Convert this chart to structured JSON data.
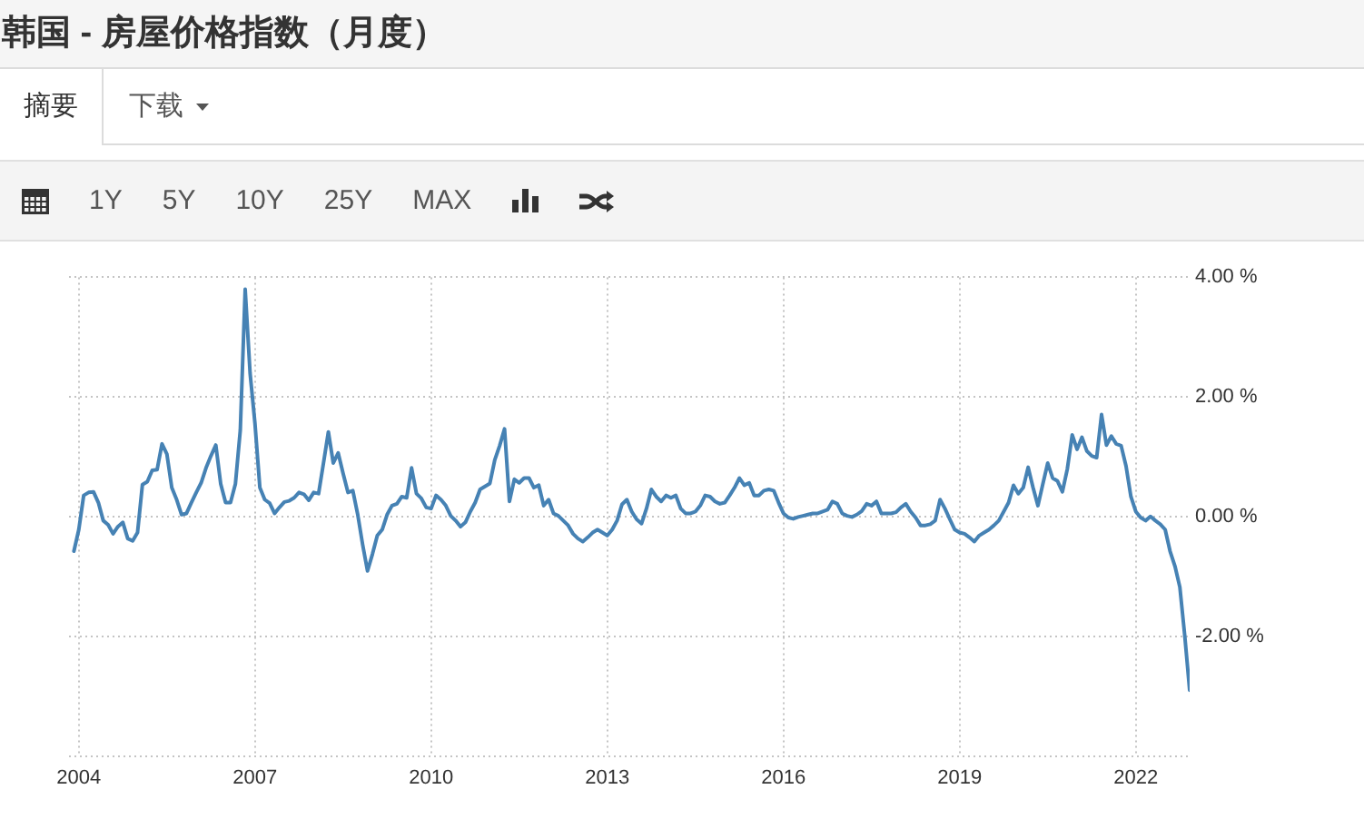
{
  "chart_data": {
    "type": "line",
    "title": "韩国 - 房屋价格指数（月度）",
    "annotations": [
      "摘要",
      "下载",
      "1Y",
      "5Y",
      "10Y",
      "25Y",
      "MAX"
    ],
    "x": [
      "2003-12",
      "2004-01",
      "2004-02",
      "2004-03",
      "2004-04",
      "2004-05",
      "2004-06",
      "2004-07",
      "2004-08",
      "2004-09",
      "2004-10",
      "2004-11",
      "2004-12",
      "2005-01",
      "2005-02",
      "2005-03",
      "2005-04",
      "2005-05",
      "2005-06",
      "2005-07",
      "2005-08",
      "2005-09",
      "2005-10",
      "2005-11",
      "2005-12",
      "2006-01",
      "2006-02",
      "2006-03",
      "2006-04",
      "2006-05",
      "2006-06",
      "2006-07",
      "2006-08",
      "2006-09",
      "2006-10",
      "2006-11",
      "2006-12",
      "2007-01",
      "2007-02",
      "2007-03",
      "2007-04",
      "2007-05",
      "2007-06",
      "2007-07",
      "2007-08",
      "2007-09",
      "2007-10",
      "2007-11",
      "2007-12",
      "2008-01",
      "2008-02",
      "2008-03",
      "2008-04",
      "2008-05",
      "2008-06",
      "2008-07",
      "2008-08",
      "2008-09",
      "2008-10",
      "2008-11",
      "2008-12",
      "2009-01",
      "2009-02",
      "2009-03",
      "2009-04",
      "2009-05",
      "2009-06",
      "2009-07",
      "2009-08",
      "2009-09",
      "2009-10",
      "2009-11",
      "2009-12",
      "2010-01",
      "2010-02",
      "2010-03",
      "2010-04",
      "2010-05",
      "2010-06",
      "2010-07",
      "2010-08",
      "2010-09",
      "2010-10",
      "2010-11",
      "2010-12",
      "2011-01",
      "2011-02",
      "2011-03",
      "2011-04",
      "2011-05",
      "2011-06",
      "2011-07",
      "2011-08",
      "2011-09",
      "2011-10",
      "2011-11",
      "2011-12",
      "2012-01",
      "2012-02",
      "2012-03",
      "2012-04",
      "2012-05",
      "2012-06",
      "2012-07",
      "2012-08",
      "2012-09",
      "2012-10",
      "2012-11",
      "2012-12",
      "2013-01",
      "2013-02",
      "2013-03",
      "2013-04",
      "2013-05",
      "2013-06",
      "2013-07",
      "2013-08",
      "2013-09",
      "2013-10",
      "2013-11",
      "2013-12",
      "2014-01",
      "2014-02",
      "2014-03",
      "2014-04",
      "2014-05",
      "2014-06",
      "2014-07",
      "2014-08",
      "2014-09",
      "2014-10",
      "2014-11",
      "2014-12",
      "2015-01",
      "2015-02",
      "2015-03",
      "2015-04",
      "2015-05",
      "2015-06",
      "2015-07",
      "2015-08",
      "2015-09",
      "2015-10",
      "2015-11",
      "2015-12",
      "2016-01",
      "2016-02",
      "2016-03",
      "2016-04",
      "2016-05",
      "2016-06",
      "2016-07",
      "2016-08",
      "2016-09",
      "2016-10",
      "2016-11",
      "2016-12",
      "2017-01",
      "2017-02",
      "2017-03",
      "2017-04",
      "2017-05",
      "2017-06",
      "2017-07",
      "2017-08",
      "2017-09",
      "2017-10",
      "2017-11",
      "2017-12",
      "2018-01",
      "2018-02",
      "2018-03",
      "2018-04",
      "2018-05",
      "2018-06",
      "2018-07",
      "2018-08",
      "2018-09",
      "2018-10",
      "2018-11",
      "2018-12",
      "2019-01",
      "2019-02",
      "2019-03",
      "2019-04",
      "2019-05",
      "2019-06",
      "2019-07",
      "2019-08",
      "2019-09",
      "2019-10",
      "2019-11",
      "2019-12",
      "2020-01",
      "2020-02",
      "2020-03",
      "2020-04",
      "2020-05",
      "2020-06",
      "2020-07",
      "2020-08",
      "2020-09",
      "2020-10",
      "2020-11",
      "2020-12",
      "2021-01",
      "2021-02",
      "2021-03",
      "2021-04",
      "2021-05",
      "2021-06",
      "2021-07",
      "2021-08",
      "2021-09",
      "2021-10",
      "2021-11",
      "2021-12",
      "2022-01",
      "2022-02",
      "2022-03",
      "2022-04",
      "2022-05",
      "2022-06",
      "2022-07",
      "2022-08",
      "2022-09",
      "2022-10",
      "2022-11",
      "2022-12"
    ],
    "values": [
      -0.57,
      -0.21,
      0.36,
      0.41,
      0.42,
      0.24,
      -0.06,
      -0.13,
      -0.28,
      -0.16,
      -0.09,
      -0.36,
      -0.4,
      -0.26,
      0.54,
      0.59,
      0.78,
      0.79,
      1.22,
      1.05,
      0.49,
      0.29,
      0.04,
      0.06,
      0.24,
      0.41,
      0.57,
      0.82,
      1.02,
      1.2,
      0.55,
      0.24,
      0.24,
      0.55,
      1.45,
      3.8,
      2.4,
      1.56,
      0.49,
      0.29,
      0.23,
      0.06,
      0.16,
      0.25,
      0.27,
      0.32,
      0.41,
      0.38,
      0.28,
      0.41,
      0.39,
      0.9,
      1.42,
      0.9,
      1.07,
      0.73,
      0.41,
      0.44,
      0.04,
      -0.46,
      -0.9,
      -0.62,
      -0.31,
      -0.21,
      0.04,
      0.19,
      0.22,
      0.34,
      0.32,
      0.82,
      0.39,
      0.31,
      0.16,
      0.14,
      0.36,
      0.29,
      0.19,
      0.02,
      -0.06,
      -0.16,
      -0.09,
      0.09,
      0.24,
      0.46,
      0.51,
      0.56,
      0.95,
      1.19,
      1.47,
      0.26,
      0.63,
      0.57,
      0.65,
      0.65,
      0.49,
      0.53,
      0.19,
      0.29,
      0.06,
      0.02,
      -0.06,
      -0.14,
      -0.28,
      -0.36,
      -0.41,
      -0.34,
      -0.26,
      -0.21,
      -0.26,
      -0.31,
      -0.21,
      -0.06,
      0.21,
      0.29,
      0.09,
      -0.04,
      -0.11,
      0.14,
      0.46,
      0.34,
      0.26,
      0.36,
      0.32,
      0.36,
      0.14,
      0.06,
      0.06,
      0.09,
      0.19,
      0.36,
      0.34,
      0.26,
      0.22,
      0.24,
      0.36,
      0.49,
      0.65,
      0.53,
      0.57,
      0.36,
      0.36,
      0.44,
      0.46,
      0.44,
      0.24,
      0.06,
      -0.01,
      -0.03,
      0.0,
      0.02,
      0.04,
      0.06,
      0.06,
      0.09,
      0.12,
      0.26,
      0.22,
      0.06,
      0.02,
      0.0,
      0.04,
      0.1,
      0.22,
      0.19,
      0.26,
      0.06,
      0.06,
      0.06,
      0.08,
      0.16,
      0.22,
      0.09,
      -0.01,
      -0.14,
      -0.14,
      -0.12,
      -0.06,
      0.29,
      0.14,
      -0.04,
      -0.21,
      -0.26,
      -0.28,
      -0.34,
      -0.41,
      -0.31,
      -0.26,
      -0.21,
      -0.14,
      -0.06,
      0.09,
      0.24,
      0.53,
      0.39,
      0.49,
      0.83,
      0.49,
      0.19,
      0.55,
      0.9,
      0.65,
      0.6,
      0.42,
      0.8,
      1.37,
      1.13,
      1.33,
      1.1,
      1.02,
      0.99,
      1.71,
      1.2,
      1.35,
      1.22,
      1.19,
      0.85,
      0.34,
      0.09,
      -0.01,
      -0.06,
      0.01,
      -0.06,
      -0.12,
      -0.21,
      -0.57,
      -0.82,
      -1.17,
      -1.98,
      -2.89
    ],
    "color": "#4682b4",
    "xlim": [
      "2003-11-01",
      "2022-12-01"
    ],
    "xticks": [
      "2004",
      "2007",
      "2010",
      "2013",
      "2016",
      "2019",
      "2022"
    ],
    "ylim": [
      -4,
      4
    ],
    "yticks": [
      {
        "value": -4,
        "label": null
      },
      {
        "value": -2,
        "label": "-2.00 %"
      },
      {
        "value": 0,
        "label": "0.00 %"
      },
      {
        "value": 2,
        "label": "2.00 %"
      },
      {
        "value": 4,
        "label": "4.00 %"
      }
    ],
    "grid": true
  }
}
